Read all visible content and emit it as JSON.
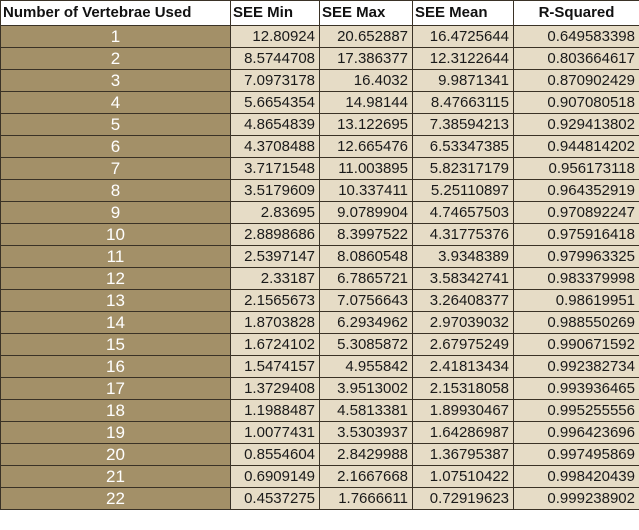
{
  "table": {
    "headers": [
      "Number of Vertebrae Used",
      "SEE Min",
      "SEE Max",
      "SEE Mean",
      "R-Squared"
    ],
    "rows": [
      [
        "1",
        "12.80924",
        "20.652887",
        "16.4725644",
        "0.649583398"
      ],
      [
        "2",
        "8.5744708",
        "17.386377",
        "12.3122644",
        "0.803664617"
      ],
      [
        "3",
        "7.0973178",
        "16.4032",
        "9.9871341",
        "0.870902429"
      ],
      [
        "4",
        "5.6654354",
        "14.98144",
        "8.47663115",
        "0.907080518"
      ],
      [
        "5",
        "4.8654839",
        "13.122695",
        "7.38594213",
        "0.929413802"
      ],
      [
        "6",
        "4.3708488",
        "12.665476",
        "6.53347385",
        "0.944814202"
      ],
      [
        "7",
        "3.7171548",
        "11.003895",
        "5.82317179",
        "0.956173118"
      ],
      [
        "8",
        "3.5179609",
        "10.337411",
        "5.25110897",
        "0.964352919"
      ],
      [
        "9",
        "2.83695",
        "9.0789904",
        "4.74657503",
        "0.970892247"
      ],
      [
        "10",
        "2.8898686",
        "8.3997522",
        "4.31775376",
        "0.975916418"
      ],
      [
        "11",
        "2.5397147",
        "8.0860548",
        "3.9348389",
        "0.979963325"
      ],
      [
        "12",
        "2.33187",
        "6.7865721",
        "3.58342741",
        "0.983379998"
      ],
      [
        "13",
        "2.1565673",
        "7.0756643",
        "3.26408377",
        "0.98619951"
      ],
      [
        "14",
        "1.8703828",
        "6.2934962",
        "2.97039032",
        "0.988550269"
      ],
      [
        "15",
        "1.6724102",
        "5.3085872",
        "2.67975249",
        "0.990671592"
      ],
      [
        "16",
        "1.5474157",
        "4.955842",
        "2.41813434",
        "0.992382734"
      ],
      [
        "17",
        "1.3729408",
        "3.9513002",
        "2.15318058",
        "0.993936465"
      ],
      [
        "18",
        "1.1988487",
        "4.5813381",
        "1.89930467",
        "0.995255556"
      ],
      [
        "19",
        "1.0077431",
        "3.5303937",
        "1.64286987",
        "0.996423696"
      ],
      [
        "20",
        "0.8554604",
        "2.8429988",
        "1.36795387",
        "0.997495869"
      ],
      [
        "21",
        "0.6909149",
        "2.1667668",
        "1.07510422",
        "0.998420439"
      ],
      [
        "22",
        "0.4537275",
        "1.7666611",
        "0.72919623",
        "0.999238902"
      ]
    ]
  }
}
